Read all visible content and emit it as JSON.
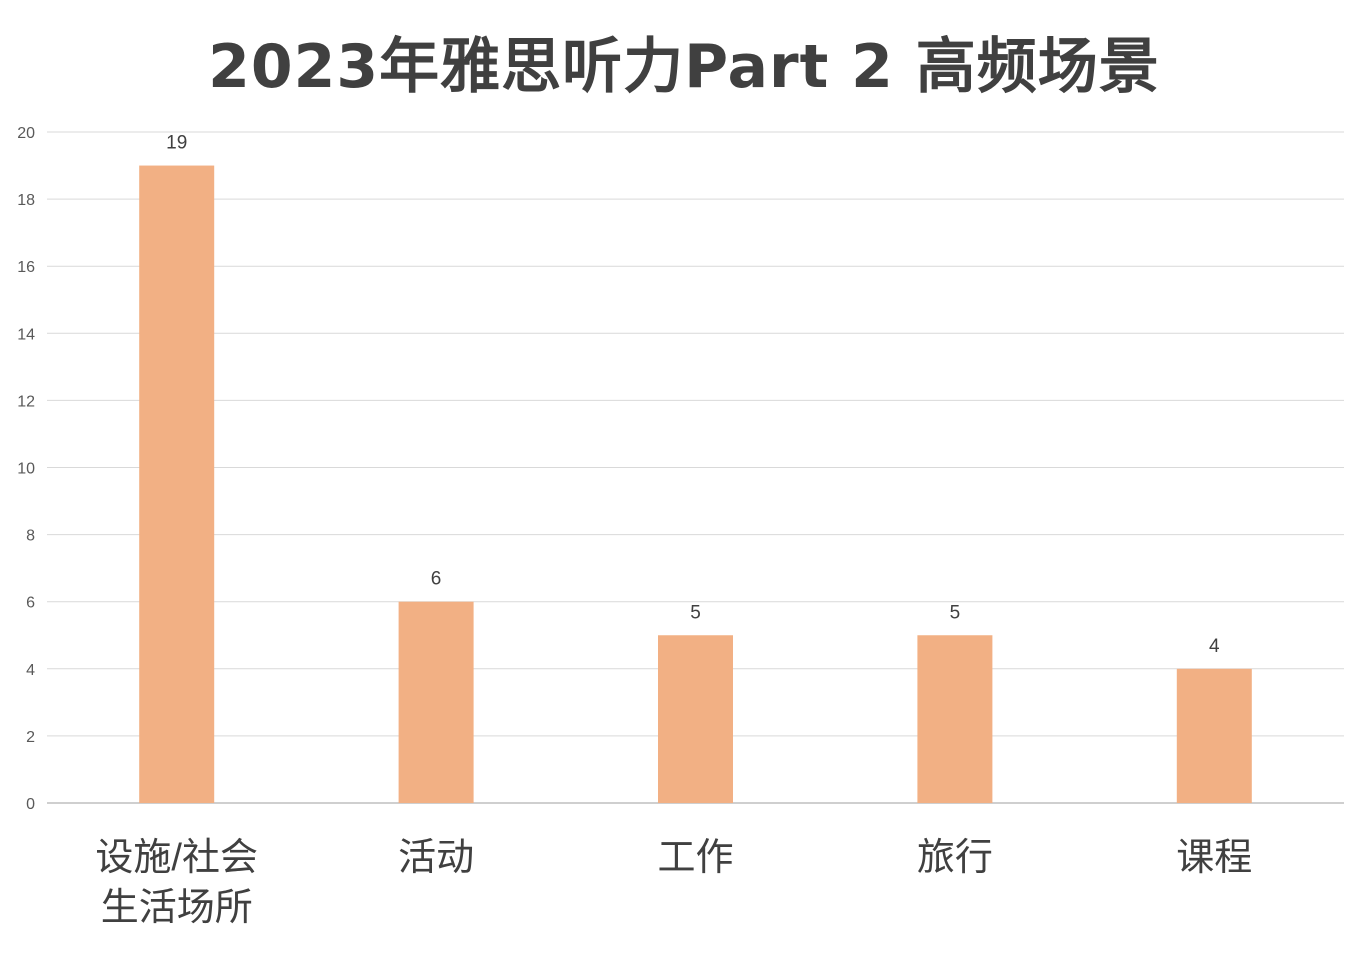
{
  "chart_data": {
    "type": "bar",
    "title": "2023年雅思听力Part 2 高频场景",
    "categories": [
      [
        "设施/社会",
        "生活场所"
      ],
      [
        "活动"
      ],
      [
        "工作"
      ],
      [
        "旅行"
      ],
      [
        "课程"
      ]
    ],
    "values": [
      19,
      6,
      5,
      5,
      4
    ],
    "ylim": [
      0,
      20
    ],
    "yticks": [
      0,
      2,
      4,
      6,
      8,
      10,
      12,
      14,
      16,
      18,
      20
    ],
    "xlabel": "",
    "ylabel": "",
    "grid": true,
    "legend": "none",
    "data_labels": true,
    "colors": {
      "bar": "#F2B084",
      "grid": "#D9D9D9",
      "axis": "#BFBFBF",
      "tick_text": "#595959",
      "label_text": "#404040",
      "title_text": "#404040"
    }
  }
}
